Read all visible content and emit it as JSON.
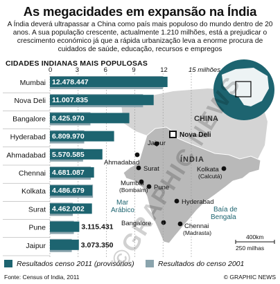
{
  "title": "As megacidades em expansão na Índia",
  "subtitle": "A Índia deverá ultrapassar a China como país mais populoso do mundo dentro de 20 anos. A sua população crescente, actualmente 1.210 milhões, está a prejudicar o crescimento económico já que a rápida urbanização leva a enorme procura de cuidados de saúde, educação, recursos e empregos",
  "chart_title": "CIDADES INDIANAS MAIS POPULOSAS",
  "colors": {
    "series_2011": "#1d6470",
    "series_2001": "#8aa4ad",
    "map_land": "#c2c2c2",
    "sea": "#ffffff"
  },
  "chart_data": {
    "type": "bar",
    "orientation": "horizontal",
    "categories": [
      "Mumbai",
      "Nova Deli",
      "Bangalore",
      "Hyderabad",
      "Ahmadabad",
      "Chennai",
      "Kolkata",
      "Surat",
      "Pune",
      "Jaipur"
    ],
    "value_labels": [
      "12.478.447",
      "11.007.835",
      "8.425.970",
      "6.809.970",
      "5.570.585",
      "4.681.087",
      "4.486.679",
      "4.462.002",
      "3.115.431",
      "3.073.350"
    ],
    "series": [
      {
        "name": "Resultados censo 2011 (provisórios)",
        "values": [
          12.478447,
          11.007835,
          8.42597,
          6.80997,
          5.570585,
          4.681087,
          4.486679,
          4.462002,
          3.115431,
          3.07335
        ]
      },
      {
        "name": "Resultados do censo 2001",
        "values": [
          11.98,
          9.88,
          4.3,
          3.64,
          3.52,
          4.34,
          4.57,
          2.43,
          2.54,
          2.32
        ]
      }
    ],
    "xticks": [
      "0",
      "3",
      "6",
      "9",
      "12",
      "15 milhões"
    ],
    "xlim": [
      0,
      15
    ]
  },
  "map": {
    "country": "ÍNDIA",
    "china": "CHINA",
    "capital": "Nova Deli",
    "cities": [
      "Jaipur",
      "Ahmadabad",
      "Surat",
      "Mumbai",
      "(Bombaim)",
      "Pune",
      "Hyderabad",
      "Bangalore",
      "Chennai",
      "(Madrasta)",
      "Kolkata",
      "(Calcutá)"
    ],
    "sea_west": [
      "Mar",
      "Arábico"
    ],
    "sea_east": [
      "Baía de",
      "Bengala"
    ],
    "scale": [
      "400km",
      "250 milhas"
    ]
  },
  "legend": {
    "item_2011": "Resultados censo 2011 (provisórios)",
    "item_2001": "Resultados do censo 2001"
  },
  "source": "Fonte: Census of India, 2011",
  "credit": "© GRAPHIC NEWS",
  "watermark": "©GRAPHIC NEWS"
}
